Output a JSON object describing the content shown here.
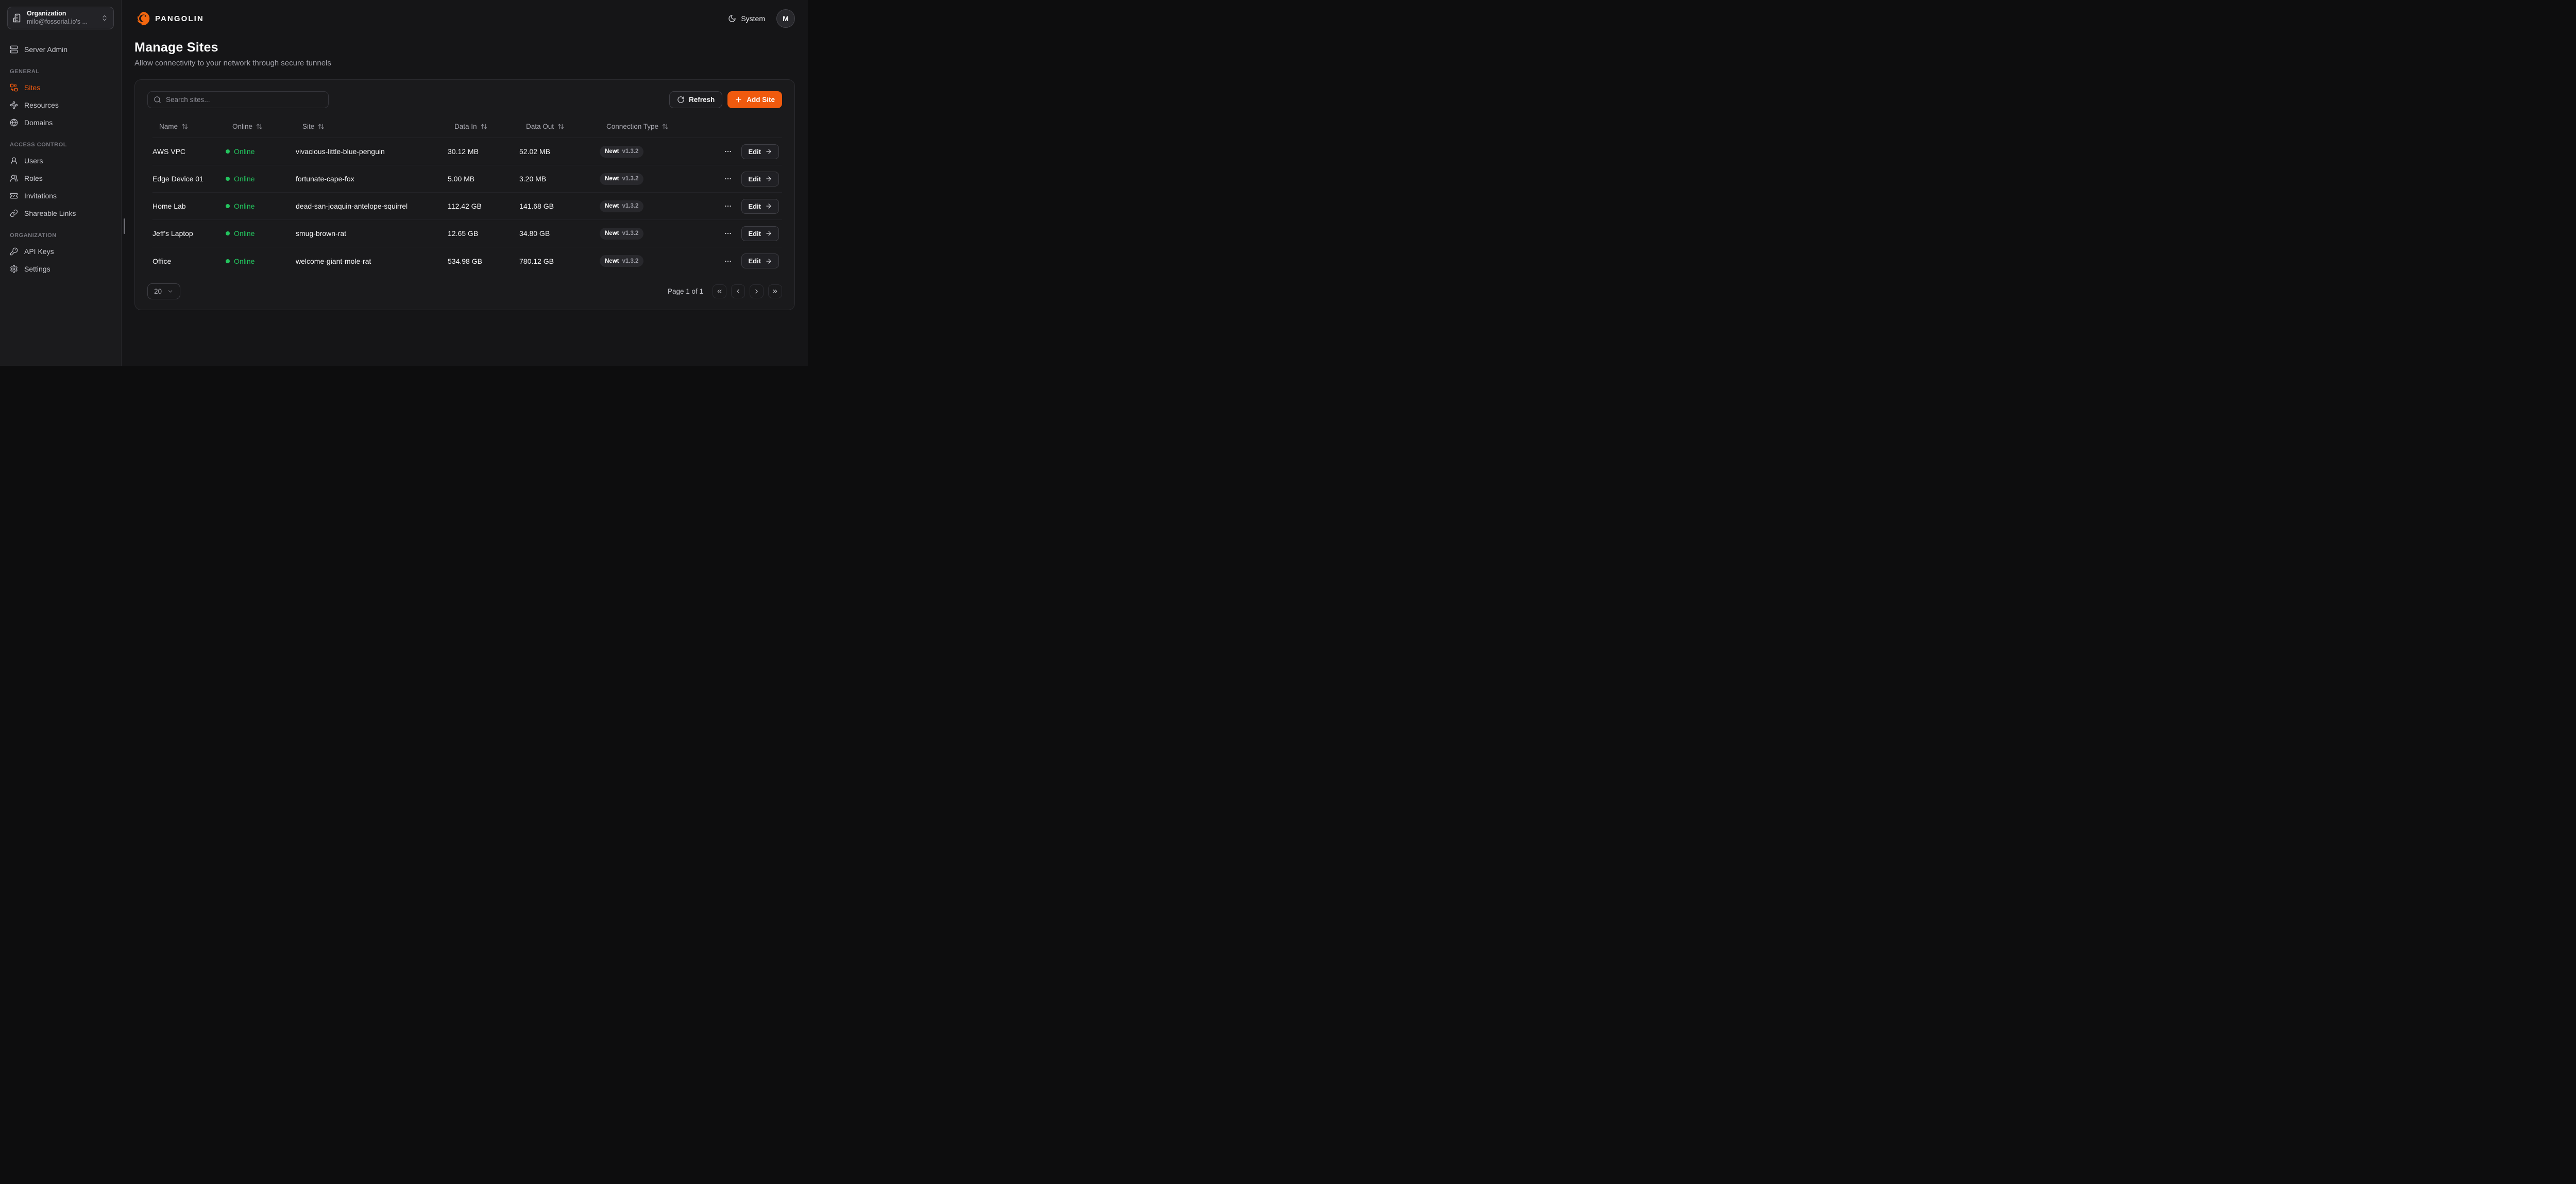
{
  "colors": {
    "accent": "#F05A0E",
    "online_green": "#23C45E",
    "page_bg": "#151517",
    "sidebar_bg": "#1B1B1D",
    "card_bg": "#1A1A1C"
  },
  "org_selector": {
    "icon": "building-icon",
    "label": "Organization",
    "value": "milo@fossorial.io's ...",
    "chevron_icon": "chevrons-up-down-icon"
  },
  "sidebar": {
    "standalone": {
      "icon": "server-icon",
      "label": "Server Admin"
    },
    "sections": [
      {
        "title": "GENERAL",
        "items": [
          {
            "icon": "sites-icon",
            "label": "Sites",
            "active": true
          },
          {
            "icon": "resources-icon",
            "label": "Resources",
            "active": false
          },
          {
            "icon": "globe-icon",
            "label": "Domains",
            "active": false
          }
        ]
      },
      {
        "title": "ACCESS CONTROL",
        "items": [
          {
            "icon": "user-icon",
            "label": "Users",
            "active": false
          },
          {
            "icon": "roles-icon",
            "label": "Roles",
            "active": false
          },
          {
            "icon": "invitations-icon",
            "label": "Invitations",
            "active": false
          },
          {
            "icon": "link-icon",
            "label": "Shareable Links",
            "active": false
          }
        ]
      },
      {
        "title": "ORGANIZATION",
        "items": [
          {
            "icon": "key-icon",
            "label": "API Keys",
            "active": false
          },
          {
            "icon": "gear-icon",
            "label": "Settings",
            "active": false
          }
        ]
      }
    ]
  },
  "topbar": {
    "brand": "PANGOLIN",
    "logo_icon": "pangolin-logo-icon",
    "theme": {
      "icon": "moon-icon",
      "label": "System"
    },
    "avatar_initial": "M"
  },
  "page": {
    "title": "Manage Sites",
    "subtitle": "Allow connectivity to your network through secure tunnels"
  },
  "toolbar": {
    "search_placeholder": "Search sites...",
    "search_icon": "search-icon",
    "refresh_label": "Refresh",
    "refresh_icon": "refresh-icon",
    "add_label": "Add Site",
    "add_icon": "plus-icon"
  },
  "table": {
    "columns": [
      "Name",
      "Online",
      "Site",
      "Data In",
      "Data Out",
      "Connection Type"
    ],
    "sort_icon": "arrow-up-down-icon",
    "row_menu_icon": "ellipsis-icon",
    "edit_arrow_icon": "arrow-right-icon",
    "rows": [
      {
        "name": "AWS VPC",
        "status": "Online",
        "site": "vivacious-little-blue-penguin",
        "data_in": "30.12 MB",
        "data_out": "52.02 MB",
        "client": "Newt",
        "version": "v1.3.2",
        "edit": "Edit"
      },
      {
        "name": "Edge Device 01",
        "status": "Online",
        "site": "fortunate-cape-fox",
        "data_in": "5.00 MB",
        "data_out": "3.20 MB",
        "client": "Newt",
        "version": "v1.3.2",
        "edit": "Edit"
      },
      {
        "name": "Home Lab",
        "status": "Online",
        "site": "dead-san-joaquin-antelope-squirrel",
        "data_in": "112.42 GB",
        "data_out": "141.68 GB",
        "client": "Newt",
        "version": "v1.3.2",
        "edit": "Edit"
      },
      {
        "name": "Jeff's Laptop",
        "status": "Online",
        "site": "smug-brown-rat",
        "data_in": "12.65 GB",
        "data_out": "34.80 GB",
        "client": "Newt",
        "version": "v1.3.2",
        "edit": "Edit"
      },
      {
        "name": "Office",
        "status": "Online",
        "site": "welcome-giant-mole-rat",
        "data_in": "534.98 GB",
        "data_out": "780.12 GB",
        "client": "Newt",
        "version": "v1.3.2",
        "edit": "Edit"
      }
    ]
  },
  "pagination": {
    "page_size": "20",
    "page_size_chevron": "chevron-down-icon",
    "page_info": "Page 1 of 1",
    "buttons": [
      "first",
      "previous",
      "next",
      "last"
    ]
  }
}
